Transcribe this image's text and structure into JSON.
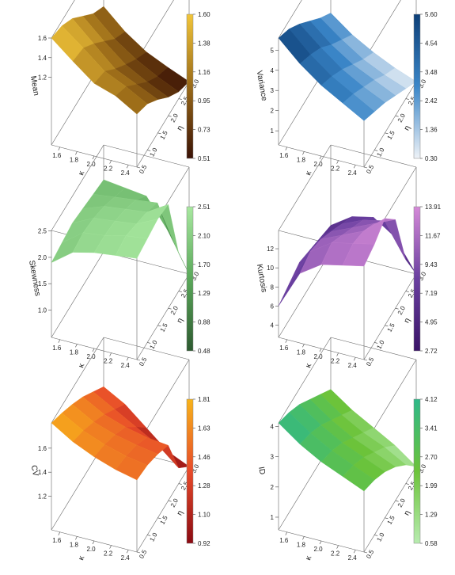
{
  "chart_data": [
    {
      "type": "surface3d",
      "zlabel": "Mean",
      "xlabel": "κ",
      "ylabel": "η",
      "x_ticks": [
        "1.6",
        "1.8",
        "2.0",
        "2.2",
        "2.4"
      ],
      "y_ticks": [
        "0.5",
        "1.0",
        "1.5",
        "2.0",
        "2.5",
        "3.0"
      ],
      "z_ticks": [
        "1.6",
        "1.4",
        "1.2"
      ],
      "zlim": [
        0.51,
        1.6
      ],
      "colorbar_ticks": [
        "1.60",
        "1.38",
        "1.16",
        "0.95",
        "0.73",
        "0.51"
      ],
      "colors": {
        "low": "#3a1205",
        "mid": "#9a6a18",
        "high": "#f2c63a"
      },
      "z": [
        [
          1.6,
          1.42,
          1.25,
          1.18,
          1.05
        ],
        [
          1.55,
          1.38,
          1.2,
          1.1,
          0.98
        ],
        [
          1.45,
          1.25,
          1.05,
          0.95,
          0.85
        ],
        [
          1.3,
          1.1,
          0.92,
          0.8,
          0.7
        ],
        [
          1.15,
          0.95,
          0.8,
          0.68,
          0.58
        ],
        [
          1.05,
          0.85,
          0.7,
          0.6,
          0.51
        ]
      ]
    },
    {
      "type": "surface3d",
      "zlabel": "Variance",
      "xlabel": "κ",
      "ylabel": "η",
      "x_ticks": [
        "1.6",
        "1.8",
        "2.0",
        "2.2",
        "2.4"
      ],
      "y_ticks": [
        "0.5",
        "1.0",
        "1.5",
        "2.0",
        "2.5",
        "3.0"
      ],
      "z_ticks": [
        "5",
        "4",
        "3",
        "2",
        "1"
      ],
      "zlim": [
        0.3,
        5.6
      ],
      "colorbar_ticks": [
        "5.60",
        "4.54",
        "3.48",
        "2.42",
        "1.36",
        "0.30"
      ],
      "colors": {
        "low": "#eef2f7",
        "mid": "#3a86c8",
        "high": "#0d3f78"
      },
      "z": [
        [
          5.6,
          4.6,
          3.8,
          3.2,
          2.6
        ],
        [
          5.2,
          4.2,
          3.4,
          2.8,
          2.2
        ],
        [
          4.6,
          3.7,
          2.9,
          2.3,
          1.8
        ],
        [
          3.9,
          3.0,
          2.3,
          1.8,
          1.3
        ],
        [
          3.2,
          2.4,
          1.7,
          1.2,
          0.8
        ],
        [
          2.6,
          1.8,
          1.2,
          0.7,
          0.3
        ]
      ]
    },
    {
      "type": "surface3d",
      "zlabel": "Skewness",
      "xlabel": "κ",
      "ylabel": "η",
      "x_ticks": [
        "1.6",
        "1.8",
        "2.0",
        "2.2",
        "2.4"
      ],
      "y_ticks": [
        "0.5",
        "1.0",
        "1.5",
        "2.0",
        "2.5",
        "3.0"
      ],
      "z_ticks": [
        "2.5",
        "2.0",
        "1.5",
        "1.0"
      ],
      "zlim": [
        0.48,
        2.51
      ],
      "colorbar_ticks": [
        "2.51",
        "2.10",
        "1.70",
        "1.29",
        "0.88",
        "0.48"
      ],
      "colors": {
        "low": "#2d5a30",
        "mid": "#5aa85a",
        "high": "#a8e8a0"
      },
      "z": [
        [
          1.9,
          2.2,
          2.3,
          2.35,
          2.4
        ],
        [
          1.95,
          2.25,
          2.3,
          2.4,
          2.45
        ],
        [
          2.0,
          2.2,
          2.25,
          2.3,
          2.5
        ],
        [
          1.95,
          2.1,
          2.15,
          2.2,
          2.45
        ],
        [
          1.9,
          1.95,
          2.0,
          2.05,
          1.2
        ],
        [
          1.85,
          1.8,
          1.75,
          1.2,
          0.48
        ]
      ]
    },
    {
      "type": "surface3d",
      "zlabel": "Kurtosis",
      "xlabel": "κ",
      "ylabel": "η",
      "x_ticks": [
        "1.6",
        "1.8",
        "2.0",
        "2.2",
        "2.4"
      ],
      "y_ticks": [
        "0.5",
        "1.0",
        "1.5",
        "2.0",
        "2.5",
        "3.0"
      ],
      "z_ticks": [
        "12",
        "10",
        "8",
        "6",
        "4"
      ],
      "zlim": [
        2.72,
        13.91
      ],
      "colorbar_ticks": [
        "13.91",
        "11.67",
        "9.43",
        "7.19",
        "4.95",
        "2.72"
      ],
      "colors": {
        "low": "#3a1468",
        "mid": "#6a3fa0",
        "high": "#d58ad8"
      },
      "z": [
        [
          6.0,
          10.0,
          11.5,
          12.0,
          12.5
        ],
        [
          6.5,
          10.5,
          12.0,
          12.5,
          13.0
        ],
        [
          7.0,
          10.0,
          11.0,
          12.0,
          13.91
        ],
        [
          6.5,
          9.0,
          10.0,
          11.0,
          12.0
        ],
        [
          6.0,
          8.0,
          9.0,
          9.5,
          6.0
        ],
        [
          5.5,
          7.0,
          7.5,
          6.0,
          2.72
        ]
      ]
    },
    {
      "type": "surface3d",
      "zlabel": "CV",
      "xlabel": "κ",
      "ylabel": "η",
      "x_ticks": [
        "1.6",
        "1.8",
        "2.0",
        "2.2",
        "2.4"
      ],
      "y_ticks": [
        "0.5",
        "1.0",
        "1.5",
        "2.0",
        "2.5",
        "3.0"
      ],
      "z_ticks": [
        "1.6",
        "1.4",
        "1.2"
      ],
      "zlim": [
        0.92,
        1.81
      ],
      "colorbar_ticks": [
        "1.81",
        "1.63",
        "1.46",
        "1.28",
        "1.10",
        "0.92"
      ],
      "colors": {
        "low": "#8a0a12",
        "mid": "#e84a2a",
        "high": "#f8b41a"
      },
      "z": [
        [
          1.81,
          1.7,
          1.62,
          1.56,
          1.52
        ],
        [
          1.75,
          1.65,
          1.58,
          1.53,
          1.5
        ],
        [
          1.68,
          1.58,
          1.52,
          1.48,
          1.45
        ],
        [
          1.6,
          1.5,
          1.44,
          1.4,
          1.38
        ],
        [
          1.5,
          1.4,
          1.3,
          1.2,
          1.05
        ],
        [
          1.4,
          1.3,
          1.15,
          1.0,
          0.92
        ]
      ]
    },
    {
      "type": "surface3d",
      "zlabel": "ID",
      "xlabel": "κ",
      "ylabel": "η",
      "x_ticks": [
        "1.6",
        "1.8",
        "2.0",
        "2.2",
        "2.4"
      ],
      "y_ticks": [
        "0.5",
        "1.0",
        "1.5",
        "2.0",
        "2.5",
        "3.0"
      ],
      "z_ticks": [
        "4",
        "3",
        "2",
        "1"
      ],
      "zlim": [
        0.58,
        4.12
      ],
      "colorbar_ticks": [
        "4.12",
        "3.41",
        "2.70",
        "1.99",
        "1.29",
        "0.58"
      ],
      "colors": {
        "low": "#b8ecb0",
        "mid": "#6cc33a",
        "high": "#2eb888"
      },
      "z": [
        [
          4.12,
          3.6,
          3.2,
          2.9,
          2.6
        ],
        [
          3.9,
          3.4,
          3.0,
          2.7,
          2.4
        ],
        [
          3.6,
          3.1,
          2.7,
          2.4,
          2.1
        ],
        [
          3.2,
          2.7,
          2.3,
          2.0,
          1.7
        ],
        [
          2.8,
          2.3,
          1.9,
          1.6,
          1.2
        ],
        [
          2.4,
          1.9,
          1.5,
          1.1,
          0.58
        ]
      ]
    }
  ]
}
